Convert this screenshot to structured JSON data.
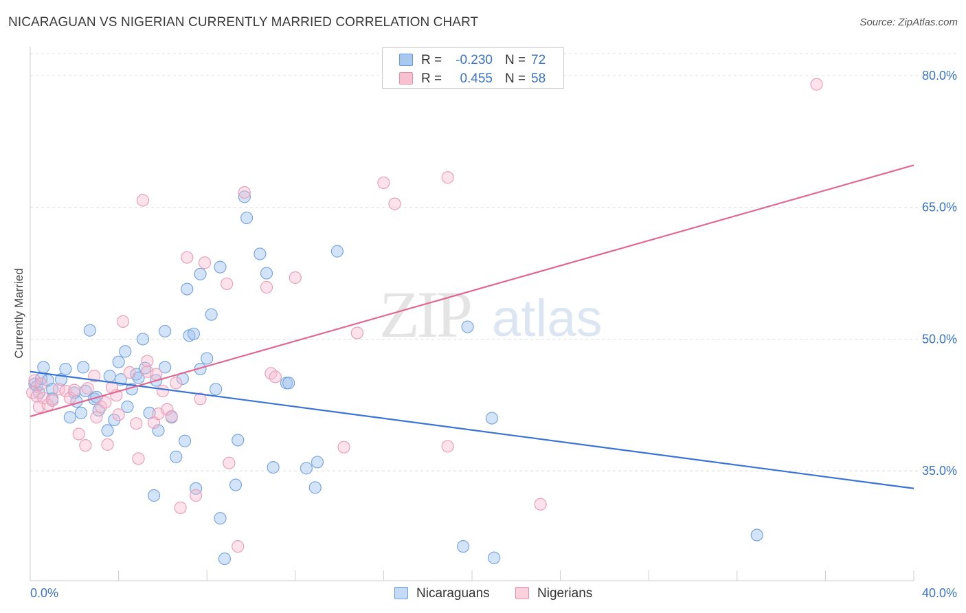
{
  "header": {
    "title": "NICARAGUAN VS NIGERIAN CURRENTLY MARRIED CORRELATION CHART",
    "source": "Source: ZipAtlas.com"
  },
  "watermark": {
    "zip": "ZIP",
    "atlas": "atlas"
  },
  "legend": {
    "rows": [
      {
        "r_label": "R =",
        "r_value": "-0.230",
        "n_label": "N =",
        "n_value": "72",
        "color": "#a8c8f0",
        "stroke": "#6a9ad8"
      },
      {
        "r_label": "R =",
        "r_value": "0.455",
        "n_label": "N =",
        "n_value": "58",
        "color": "#f8c0d0",
        "stroke": "#e890a8"
      }
    ],
    "bottom": [
      {
        "label": "Nicaraguans",
        "color": "#c4daf6",
        "stroke": "#6a9ad8"
      },
      {
        "label": "Nigerians",
        "color": "#fad2de",
        "stroke": "#e890a8"
      }
    ]
  },
  "chart_data": {
    "type": "scatter",
    "title": "NICARAGUAN VS NIGERIAN CURRENTLY MARRIED CORRELATION CHART",
    "xlabel": "",
    "ylabel": "Currently Married",
    "xlim": [
      0,
      40
    ],
    "ylim": [
      22.5,
      82.5
    ],
    "x_tick_labels": [
      "0.0%",
      "40.0%"
    ],
    "y_ticks": [
      35,
      50,
      65,
      80
    ],
    "y_tick_labels": [
      "35.0%",
      "50.0%",
      "65.0%",
      "80.0%"
    ],
    "grid": true,
    "colors": {
      "nicaraguans": "#3a73d6",
      "nigerians": "#e06890",
      "axis_text": "#3a73c6"
    },
    "series": [
      {
        "name": "Nicaraguans",
        "trend": {
          "x": [
            0,
            40
          ],
          "y": [
            46.3,
            33.0
          ]
        },
        "points": [
          [
            0.2,
            44.9
          ],
          [
            0.3,
            44.6
          ],
          [
            0.4,
            43.9
          ],
          [
            0.5,
            45.5
          ],
          [
            0.6,
            46.8
          ],
          [
            0.8,
            45.3
          ],
          [
            1.0,
            44.3
          ],
          [
            1.0,
            43.2
          ],
          [
            1.4,
            45.4
          ],
          [
            1.6,
            46.6
          ],
          [
            1.8,
            41.1
          ],
          [
            2.0,
            43.9
          ],
          [
            2.1,
            42.9
          ],
          [
            2.3,
            41.6
          ],
          [
            2.4,
            46.8
          ],
          [
            2.5,
            44.1
          ],
          [
            2.7,
            51.0
          ],
          [
            2.9,
            43.2
          ],
          [
            3.0,
            43.4
          ],
          [
            3.1,
            41.9
          ],
          [
            3.5,
            39.6
          ],
          [
            3.6,
            45.8
          ],
          [
            3.8,
            40.8
          ],
          [
            4.0,
            47.4
          ],
          [
            4.1,
            45.4
          ],
          [
            4.3,
            48.6
          ],
          [
            4.4,
            42.3
          ],
          [
            4.6,
            44.3
          ],
          [
            4.8,
            46.0
          ],
          [
            4.9,
            45.6
          ],
          [
            5.1,
            50.0
          ],
          [
            5.2,
            46.7
          ],
          [
            5.4,
            41.6
          ],
          [
            5.6,
            32.2
          ],
          [
            5.7,
            45.3
          ],
          [
            5.8,
            39.6
          ],
          [
            6.1,
            50.9
          ],
          [
            6.1,
            46.8
          ],
          [
            6.4,
            41.1
          ],
          [
            6.6,
            36.6
          ],
          [
            6.9,
            45.5
          ],
          [
            7.0,
            38.4
          ],
          [
            7.1,
            55.7
          ],
          [
            7.2,
            50.4
          ],
          [
            7.4,
            50.6
          ],
          [
            7.5,
            33.0
          ],
          [
            7.7,
            57.4
          ],
          [
            7.7,
            46.6
          ],
          [
            8.0,
            47.8
          ],
          [
            8.2,
            52.8
          ],
          [
            8.4,
            44.3
          ],
          [
            8.6,
            58.2
          ],
          [
            8.6,
            29.6
          ],
          [
            8.8,
            25.0
          ],
          [
            9.3,
            33.4
          ],
          [
            9.4,
            38.5
          ],
          [
            9.7,
            66.2
          ],
          [
            9.8,
            63.8
          ],
          [
            10.4,
            59.7
          ],
          [
            10.7,
            57.5
          ],
          [
            11.0,
            35.4
          ],
          [
            11.6,
            45.0
          ],
          [
            11.7,
            45.0
          ],
          [
            12.5,
            35.3
          ],
          [
            12.9,
            33.1
          ],
          [
            13.0,
            36.0
          ],
          [
            13.9,
            60.0
          ],
          [
            19.6,
            26.4
          ],
          [
            19.8,
            51.4
          ],
          [
            20.9,
            41.0
          ],
          [
            21.0,
            25.1
          ],
          [
            32.9,
            27.7
          ]
        ]
      },
      {
        "name": "Nigerians",
        "trend": {
          "x": [
            0,
            40
          ],
          "y": [
            41.2,
            69.8
          ]
        },
        "points": [
          [
            0.1,
            43.9
          ],
          [
            0.2,
            45.3
          ],
          [
            0.3,
            43.5
          ],
          [
            0.4,
            42.3
          ],
          [
            0.5,
            44.9
          ],
          [
            0.6,
            43.3
          ],
          [
            0.8,
            42.5
          ],
          [
            1.0,
            43.0
          ],
          [
            1.3,
            44.3
          ],
          [
            1.6,
            44.1
          ],
          [
            1.8,
            43.3
          ],
          [
            2.0,
            44.2
          ],
          [
            2.2,
            39.2
          ],
          [
            2.5,
            37.9
          ],
          [
            2.6,
            44.4
          ],
          [
            2.9,
            45.8
          ],
          [
            3.0,
            41.1
          ],
          [
            3.2,
            42.3
          ],
          [
            3.4,
            42.8
          ],
          [
            3.5,
            38.0
          ],
          [
            3.7,
            44.5
          ],
          [
            3.9,
            43.6
          ],
          [
            4.0,
            41.4
          ],
          [
            4.2,
            52.0
          ],
          [
            4.5,
            46.2
          ],
          [
            4.8,
            40.4
          ],
          [
            4.9,
            36.4
          ],
          [
            5.1,
            65.8
          ],
          [
            5.3,
            47.5
          ],
          [
            5.3,
            46.3
          ],
          [
            5.6,
            40.5
          ],
          [
            5.7,
            46.0
          ],
          [
            5.8,
            41.5
          ],
          [
            6.0,
            44.1
          ],
          [
            6.2,
            42.0
          ],
          [
            6.4,
            41.2
          ],
          [
            6.6,
            45.0
          ],
          [
            6.8,
            30.8
          ],
          [
            7.1,
            59.3
          ],
          [
            7.5,
            32.2
          ],
          [
            7.7,
            43.2
          ],
          [
            7.9,
            58.7
          ],
          [
            8.9,
            56.3
          ],
          [
            9.0,
            35.9
          ],
          [
            9.4,
            26.4
          ],
          [
            9.7,
            66.7
          ],
          [
            10.7,
            55.9
          ],
          [
            10.9,
            46.1
          ],
          [
            11.1,
            45.7
          ],
          [
            12.0,
            57.0
          ],
          [
            14.2,
            37.7
          ],
          [
            14.8,
            50.7
          ],
          [
            16.0,
            67.8
          ],
          [
            16.5,
            65.4
          ],
          [
            18.9,
            68.4
          ],
          [
            18.9,
            37.8
          ],
          [
            23.1,
            31.2
          ],
          [
            35.6,
            79.0
          ]
        ]
      }
    ]
  }
}
